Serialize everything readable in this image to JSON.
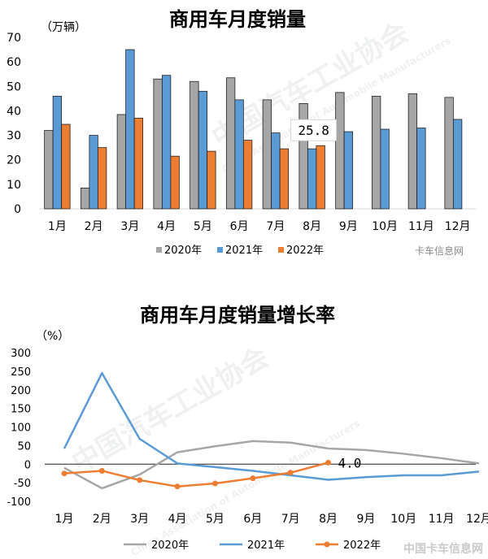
{
  "chart_data": [
    {
      "type": "bar",
      "title": "商用车月度销量",
      "unit_label": "（万辆）",
      "categories": [
        "1月",
        "2月",
        "3月",
        "4月",
        "5月",
        "6月",
        "7月",
        "8月",
        "9月",
        "10月",
        "11月",
        "12月"
      ],
      "ylim": [
        0,
        70
      ],
      "yticks": [
        "0",
        "10",
        "20",
        "30",
        "40",
        "50",
        "60",
        "70"
      ],
      "series": [
        {
          "name": "2020年",
          "color": "#a6a6a6",
          "values": [
            32,
            8.5,
            38.5,
            53,
            52,
            53.5,
            44.5,
            43,
            47.5,
            46,
            47,
            45.5
          ]
        },
        {
          "name": "2021年",
          "color": "#5b9bd5",
          "values": [
            46,
            30,
            65,
            54.5,
            48,
            44.5,
            31,
            24.5,
            31.5,
            32.5,
            33,
            36.5
          ]
        },
        {
          "name": "2022年",
          "color": "#ed7d31",
          "values": [
            34.5,
            25,
            37,
            21.5,
            23.5,
            28,
            24.5,
            25.8,
            null,
            null,
            null,
            null
          ]
        }
      ],
      "annotation": "25.8",
      "legend": "bottom",
      "grid": false
    },
    {
      "type": "line",
      "title": "商用车月度销量增长率",
      "unit_label": "（%）",
      "categories": [
        "1月",
        "2月",
        "3月",
        "4月",
        "5月",
        "6月",
        "7月",
        "8月",
        "9月",
        "10月",
        "11月",
        "12月"
      ],
      "ylim": [
        -100,
        300
      ],
      "yticks": [
        "-100",
        "-50",
        "0",
        "50",
        "100",
        "150",
        "200",
        "250",
        "300"
      ],
      "series": [
        {
          "name": "2020年",
          "color": "#a6a6a6",
          "values": [
            -10,
            -65,
            -28,
            32,
            48,
            62,
            58,
            42,
            38,
            28,
            16,
            2
          ]
        },
        {
          "name": "2021年",
          "color": "#5b9bd5",
          "values": [
            42,
            245,
            68,
            2,
            -8,
            -18,
            -30,
            -42,
            -35,
            -30,
            -30,
            -20
          ]
        },
        {
          "name": "2022年",
          "color": "#ed7d31",
          "values": [
            -25,
            -18,
            -43,
            -60,
            -52,
            -38,
            -23,
            4.0,
            null,
            null,
            null,
            null
          ]
        }
      ],
      "annotation": "4.0",
      "legend": "bottom",
      "grid": false
    }
  ],
  "watermark": {
    "brand_line1": "中国汽车工业协会",
    "brand_line2": "China Association of Automobile Manufacturers",
    "source_top": "卡车信息网",
    "source_bottom": "中国卡车信息网"
  }
}
